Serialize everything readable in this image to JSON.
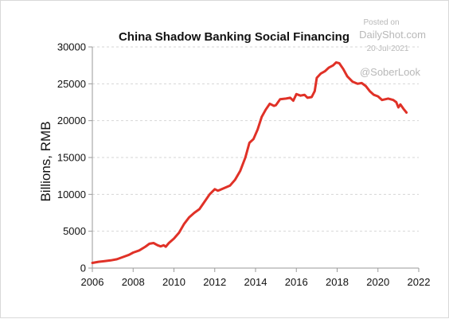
{
  "chart_data": {
    "type": "line",
    "title": "China Shadow Banking Social Financing",
    "xlabel": "",
    "ylabel": "Billions, RMB",
    "xlim": [
      2006,
      2022
    ],
    "ylim": [
      0,
      30000
    ],
    "x_ticks": [
      "2006",
      "2008",
      "2010",
      "2012",
      "2014",
      "2016",
      "2018",
      "2020",
      "2022"
    ],
    "y_ticks": [
      "0",
      "5000",
      "10000",
      "15000",
      "20000",
      "25000",
      "30000"
    ],
    "grid": "horizontal dashed",
    "series": [
      {
        "color": "#e03127",
        "points": [
          [
            2006.0,
            700
          ],
          [
            2006.3,
            850
          ],
          [
            2006.6,
            950
          ],
          [
            2006.9,
            1050
          ],
          [
            2007.2,
            1200
          ],
          [
            2007.5,
            1500
          ],
          [
            2007.8,
            1800
          ],
          [
            2008.0,
            2100
          ],
          [
            2008.3,
            2400
          ],
          [
            2008.6,
            2900
          ],
          [
            2008.8,
            3300
          ],
          [
            2009.0,
            3400
          ],
          [
            2009.2,
            3100
          ],
          [
            2009.35,
            2950
          ],
          [
            2009.5,
            3100
          ],
          [
            2009.6,
            2900
          ],
          [
            2009.75,
            3400
          ],
          [
            2010.0,
            4000
          ],
          [
            2010.25,
            4800
          ],
          [
            2010.5,
            6000
          ],
          [
            2010.75,
            6900
          ],
          [
            2011.0,
            7500
          ],
          [
            2011.25,
            8000
          ],
          [
            2011.5,
            9000
          ],
          [
            2011.75,
            10000
          ],
          [
            2012.0,
            10700
          ],
          [
            2012.15,
            10500
          ],
          [
            2012.25,
            10600
          ],
          [
            2012.5,
            10900
          ],
          [
            2012.75,
            11200
          ],
          [
            2013.0,
            12000
          ],
          [
            2013.25,
            13200
          ],
          [
            2013.5,
            15000
          ],
          [
            2013.7,
            17000
          ],
          [
            2013.9,
            17500
          ],
          [
            2014.1,
            18800
          ],
          [
            2014.3,
            20500
          ],
          [
            2014.5,
            21500
          ],
          [
            2014.7,
            22300
          ],
          [
            2014.9,
            22000
          ],
          [
            2015.0,
            22100
          ],
          [
            2015.2,
            22900
          ],
          [
            2015.5,
            23000
          ],
          [
            2015.7,
            23100
          ],
          [
            2015.85,
            22700
          ],
          [
            2016.0,
            23600
          ],
          [
            2016.2,
            23400
          ],
          [
            2016.4,
            23500
          ],
          [
            2016.55,
            23100
          ],
          [
            2016.75,
            23200
          ],
          [
            2016.9,
            24000
          ],
          [
            2017.0,
            25800
          ],
          [
            2017.2,
            26400
          ],
          [
            2017.4,
            26700
          ],
          [
            2017.6,
            27200
          ],
          [
            2017.8,
            27500
          ],
          [
            2017.95,
            27900
          ],
          [
            2018.1,
            27800
          ],
          [
            2018.3,
            27000
          ],
          [
            2018.5,
            26000
          ],
          [
            2018.75,
            25300
          ],
          [
            2019.0,
            25000
          ],
          [
            2019.2,
            25100
          ],
          [
            2019.4,
            24700
          ],
          [
            2019.6,
            24000
          ],
          [
            2019.8,
            23500
          ],
          [
            2020.0,
            23300
          ],
          [
            2020.2,
            22800
          ],
          [
            2020.5,
            23000
          ],
          [
            2020.75,
            22800
          ],
          [
            2020.9,
            22500
          ],
          [
            2021.0,
            21800
          ],
          [
            2021.1,
            22200
          ],
          [
            2021.25,
            21600
          ],
          [
            2021.4,
            21100
          ]
        ]
      }
    ]
  },
  "watermark": {
    "posted_on": "Posted on",
    "site": "DailyShot.com",
    "date": "20-Jul-2021",
    "handle": "@SoberLook"
  }
}
